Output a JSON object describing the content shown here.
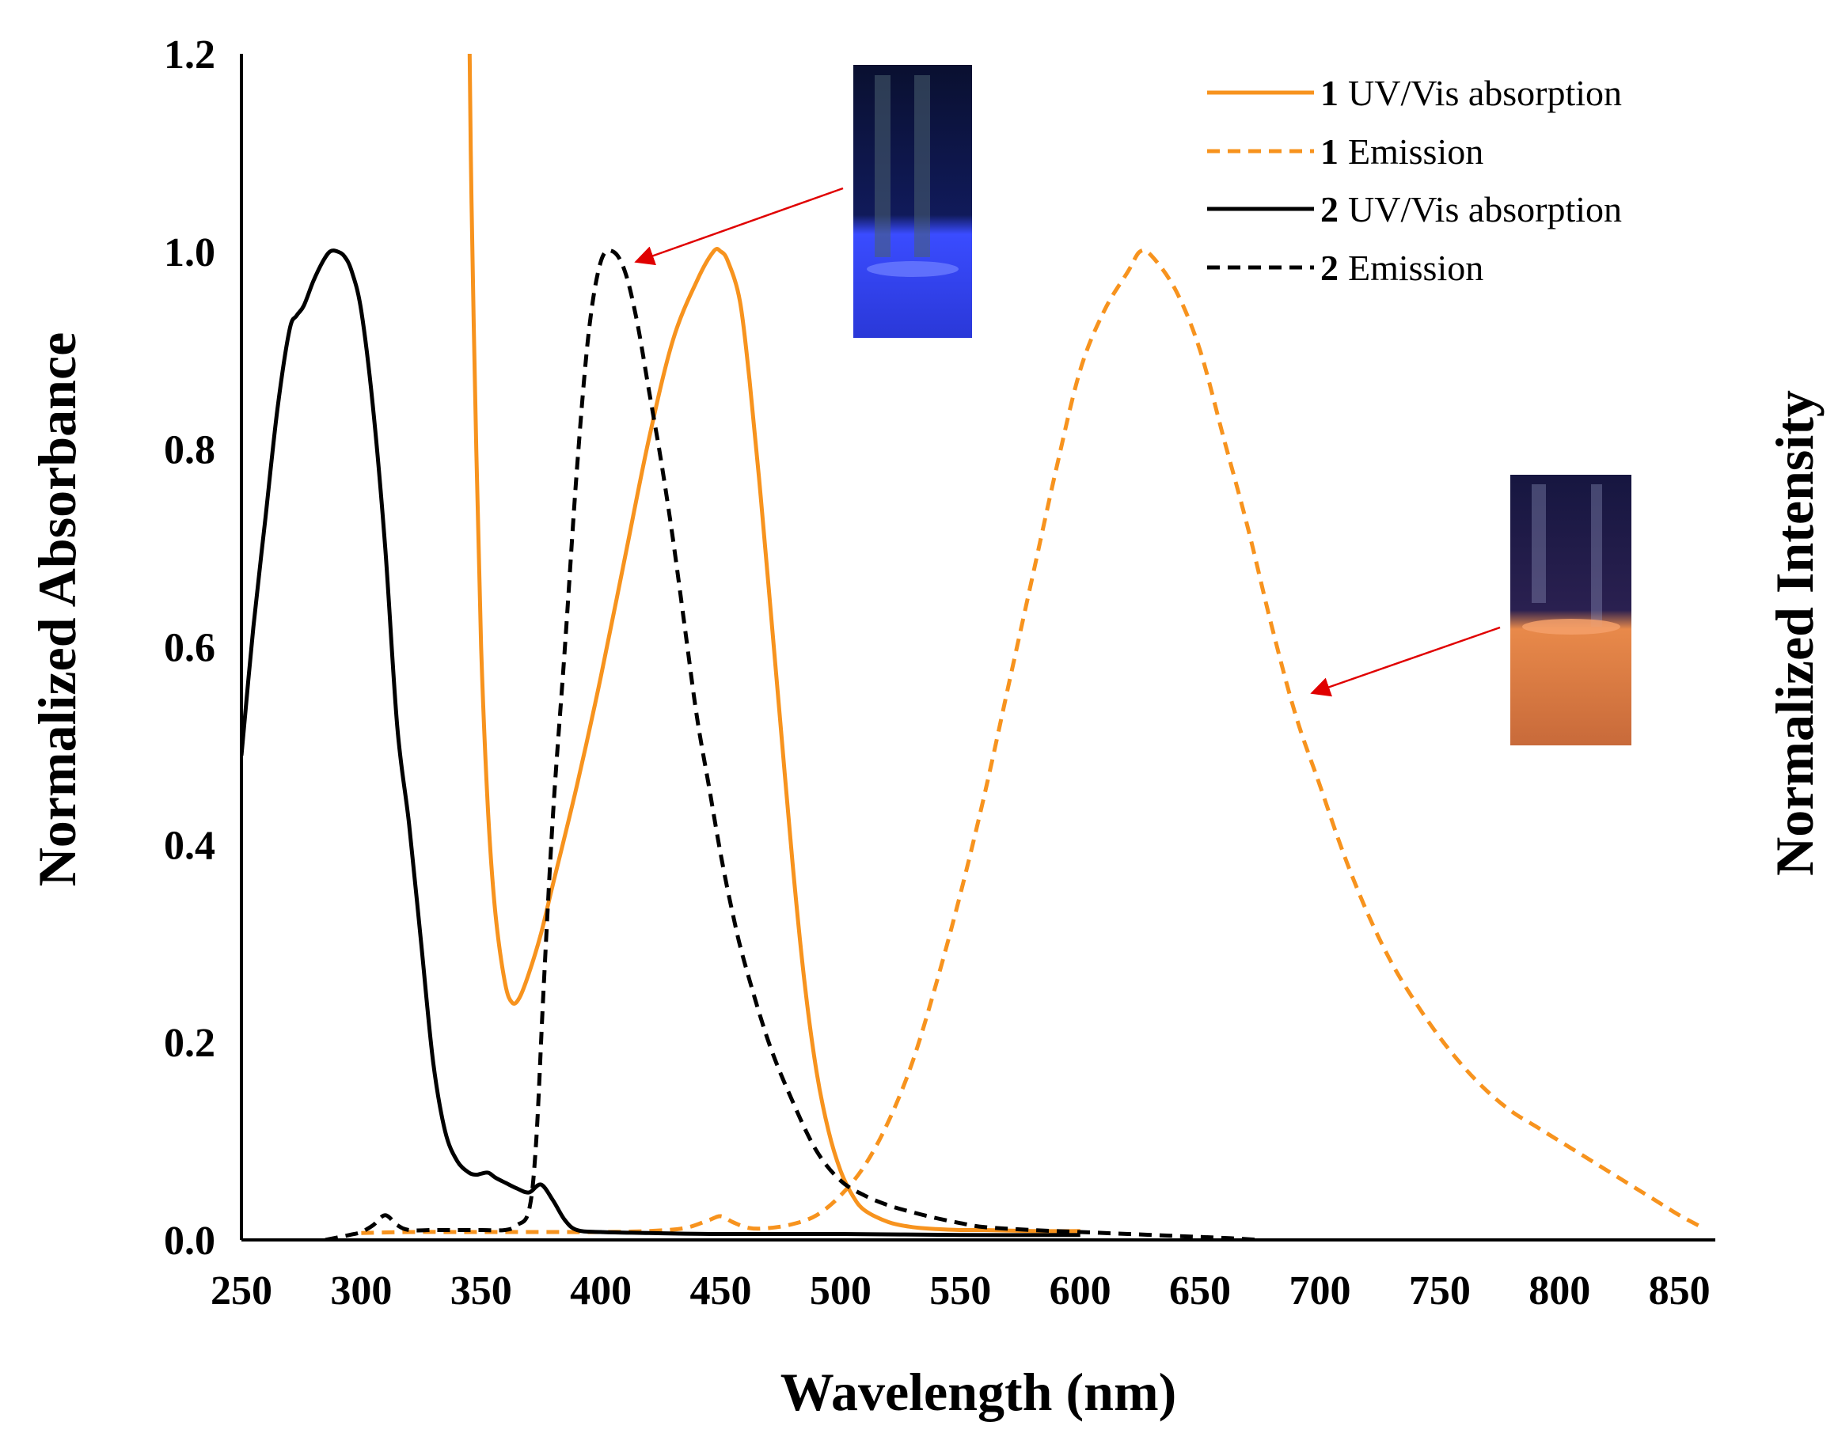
{
  "chart_data": {
    "type": "line",
    "xlabel": "Wavelength (nm)",
    "ylabel": "Normalized Absorbance",
    "y2label": "Normalized Intensity",
    "xlim": [
      250,
      865
    ],
    "ylim": [
      0,
      1.2
    ],
    "xticks": [
      "250",
      "300",
      "350",
      "400",
      "450",
      "500",
      "550",
      "600",
      "650",
      "700",
      "750",
      "800",
      "850"
    ],
    "xtick_values": [
      250,
      300,
      350,
      400,
      450,
      500,
      550,
      600,
      650,
      700,
      750,
      800,
      850
    ],
    "yticks": [
      "0.0",
      "0.2",
      "0.4",
      "0.6",
      "0.8",
      "1.0",
      "1.2"
    ],
    "ytick_values": [
      0,
      0.2,
      0.4,
      0.6,
      0.8,
      1.0,
      1.2
    ],
    "colors": {
      "orange": "#F7931E",
      "black": "#000000",
      "arrow": "#E00000"
    },
    "legend_position": "top-right",
    "series": [
      {
        "num": "1",
        "name": "UV/Vis absorption",
        "color": "#F7931E",
        "dash": "solid",
        "x": [
          345,
          346,
          348,
          350,
          353,
          356,
          360,
          363,
          366,
          370,
          375,
          380,
          390,
          400,
          410,
          420,
          430,
          440,
          447,
          450,
          453,
          458,
          462,
          466,
          470,
          475,
          480,
          485,
          490,
          495,
          500,
          505,
          510,
          520,
          530,
          540,
          550,
          560,
          580,
          600
        ],
        "y": [
          1.25,
          1.05,
          0.8,
          0.6,
          0.43,
          0.33,
          0.26,
          0.24,
          0.245,
          0.27,
          0.31,
          0.36,
          0.46,
          0.57,
          0.69,
          0.81,
          0.91,
          0.97,
          1.0,
          1.0,
          0.99,
          0.95,
          0.87,
          0.77,
          0.66,
          0.52,
          0.38,
          0.26,
          0.17,
          0.11,
          0.07,
          0.045,
          0.03,
          0.018,
          0.013,
          0.011,
          0.01,
          0.01,
          0.009,
          0.009
        ]
      },
      {
        "num": "1",
        "name": "Emission",
        "color": "#F7931E",
        "dash": "dashed",
        "x": [
          300,
          320,
          340,
          360,
          380,
          400,
          420,
          435,
          445,
          450,
          455,
          462,
          470,
          480,
          490,
          500,
          510,
          520,
          530,
          540,
          550,
          560,
          570,
          580,
          590,
          600,
          610,
          620,
          625,
          630,
          640,
          650,
          660,
          670,
          680,
          690,
          700,
          710,
          720,
          730,
          740,
          750,
          760,
          770,
          780,
          790,
          800,
          810,
          820,
          830,
          840,
          850,
          860
        ],
        "y": [
          0.007,
          0.008,
          0.008,
          0.008,
          0.008,
          0.008,
          0.009,
          0.012,
          0.02,
          0.024,
          0.018,
          0.012,
          0.012,
          0.016,
          0.025,
          0.045,
          0.075,
          0.12,
          0.18,
          0.26,
          0.35,
          0.45,
          0.56,
          0.67,
          0.78,
          0.88,
          0.94,
          0.98,
          1.0,
          0.995,
          0.96,
          0.9,
          0.81,
          0.72,
          0.62,
          0.53,
          0.46,
          0.39,
          0.33,
          0.28,
          0.24,
          0.205,
          0.175,
          0.15,
          0.13,
          0.115,
          0.1,
          0.085,
          0.07,
          0.055,
          0.04,
          0.025,
          0.012
        ]
      },
      {
        "num": "2",
        "name": "UV/Vis absorption",
        "color": "#000000",
        "dash": "solid",
        "x": [
          250,
          255,
          260,
          265,
          270,
          273,
          276,
          280,
          284,
          287,
          290,
          293,
          296,
          300,
          305,
          310,
          315,
          320,
          325,
          330,
          335,
          340,
          345,
          348,
          350,
          353,
          356,
          360,
          365,
          370,
          375,
          380,
          385,
          390,
          400,
          420,
          450,
          500,
          550,
          600
        ],
        "y": [
          0.49,
          0.62,
          0.73,
          0.84,
          0.92,
          0.935,
          0.945,
          0.97,
          0.99,
          1.0,
          1.0,
          0.995,
          0.98,
          0.94,
          0.84,
          0.7,
          0.52,
          0.42,
          0.3,
          0.18,
          0.11,
          0.08,
          0.068,
          0.066,
          0.067,
          0.068,
          0.063,
          0.058,
          0.052,
          0.048,
          0.056,
          0.04,
          0.02,
          0.01,
          0.008,
          0.007,
          0.006,
          0.006,
          0.005,
          0.005
        ]
      },
      {
        "num": "2",
        "name": "Emission",
        "color": "#000000",
        "dash": "dashed",
        "x": [
          285,
          295,
          300,
          305,
          310,
          315,
          320,
          330,
          340,
          350,
          360,
          365,
          370,
          373,
          376,
          380,
          385,
          390,
          395,
          400,
          405,
          410,
          415,
          420,
          425,
          430,
          435,
          440,
          445,
          450,
          455,
          460,
          470,
          480,
          490,
          500,
          510,
          520,
          530,
          540,
          550,
          560,
          580,
          600,
          620,
          640,
          660,
          675
        ],
        "y": [
          0.0,
          0.005,
          0.008,
          0.015,
          0.025,
          0.015,
          0.01,
          0.01,
          0.01,
          0.01,
          0.01,
          0.015,
          0.03,
          0.1,
          0.25,
          0.43,
          0.6,
          0.78,
          0.92,
          0.99,
          1.0,
          0.98,
          0.93,
          0.86,
          0.79,
          0.71,
          0.62,
          0.53,
          0.46,
          0.39,
          0.33,
          0.28,
          0.2,
          0.14,
          0.09,
          0.06,
          0.045,
          0.035,
          0.028,
          0.022,
          0.017,
          0.013,
          0.01,
          0.008,
          0.006,
          0.004,
          0.002,
          0.0
        ]
      }
    ],
    "annotations": [
      {
        "name": "blue-vial-photo",
        "points_to": "2 Emission",
        "target_x": 410,
        "target_y": 0.99
      },
      {
        "name": "orange-vial-photo",
        "points_to": "1 Emission",
        "target_x": 695,
        "target_y": 0.555
      }
    ]
  }
}
